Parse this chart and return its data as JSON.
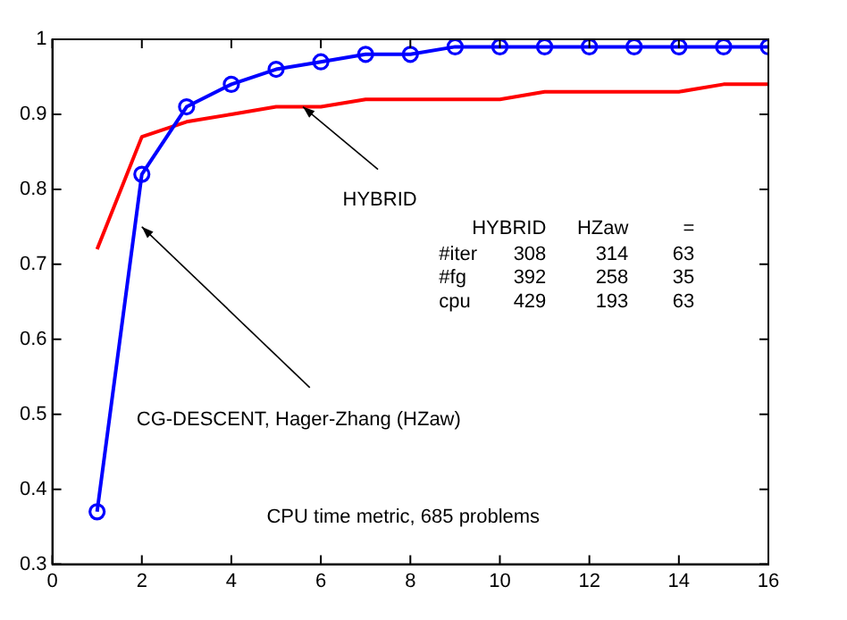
{
  "chart_data": {
    "type": "line",
    "x": [
      1,
      2,
      3,
      4,
      5,
      6,
      7,
      8,
      9,
      10,
      11,
      12,
      13,
      14,
      15,
      16
    ],
    "series": [
      {
        "color": "#0000ff",
        "marker": "circle",
        "values": [
          0.37,
          0.82,
          0.91,
          0.94,
          0.96,
          0.97,
          0.98,
          0.98,
          0.99,
          0.99,
          0.99,
          0.99,
          0.99,
          0.99,
          0.99,
          0.99
        ]
      },
      {
        "color": "#ff0000",
        "marker": "none",
        "values": [
          0.72,
          0.87,
          0.89,
          0.9,
          0.91,
          0.91,
          0.92,
          0.92,
          0.92,
          0.92,
          0.93,
          0.93,
          0.93,
          0.93,
          0.94,
          0.94
        ]
      }
    ],
    "xlim": [
      0,
      16
    ],
    "xticks": [
      0,
      2,
      4,
      6,
      8,
      10,
      12,
      14,
      16
    ],
    "ylim": [
      0.3,
      1
    ],
    "yticks": [
      0.3,
      0.4,
      0.5,
      0.6,
      0.7,
      0.8,
      0.9,
      1
    ],
    "grid": false,
    "legend": false,
    "line_style": "solid",
    "annotations": [
      {
        "text": "HYBRID",
        "x": 5.6,
        "y": 0.91
      },
      {
        "text": "CG-DESCENT, Hager-Zhang (HZaw)",
        "x": 2,
        "y": 0.75
      },
      "HYBRID HZaw =",
      "#iter 308 314 63",
      "#fg 392 258 35",
      "cpu 429 193 63",
      "CPU time metric, 685 problems"
    ]
  }
}
